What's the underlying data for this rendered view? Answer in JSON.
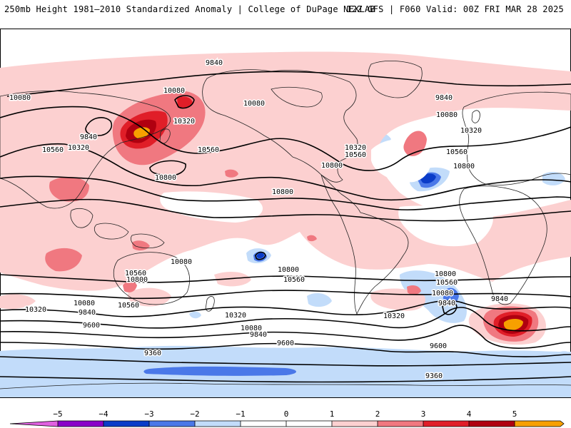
{
  "header": {
    "left": "250mb Height 1981–2010 Standardized Anomaly | College of DuPage NEXLAB",
    "right": "12Z GFS | F060 Valid: 00Z FRI MAR 28 2025"
  },
  "colors": {
    "neg5": "#e060e0",
    "neg4": "#8a00c8",
    "neg3": "#0a3cc8",
    "neg2": "#4a78e8",
    "neg1": "#c2dcfa",
    "pos1": "#fcd0d0",
    "pos2": "#f07880",
    "pos3": "#e01e28",
    "pos4": "#b00010",
    "pos5": "#f7a000"
  },
  "contours": [
    {
      "label": "9840"
    },
    {
      "label": "10080"
    },
    {
      "label": "10080"
    },
    {
      "label": "10320"
    },
    {
      "label": "10560"
    },
    {
      "label": "9840"
    },
    {
      "label": "10320"
    },
    {
      "label": "10800"
    },
    {
      "label": "10560"
    },
    {
      "label": "10080"
    },
    {
      "label": "10320"
    },
    {
      "label": "10560"
    },
    {
      "label": "10800"
    },
    {
      "label": "9840"
    },
    {
      "label": "10080"
    },
    {
      "label": "10320"
    },
    {
      "label": "10560"
    },
    {
      "label": "10800"
    },
    {
      "label": "10800"
    },
    {
      "label": "10800"
    },
    {
      "label": "10560"
    },
    {
      "label": "10560"
    },
    {
      "label": "10320"
    },
    {
      "label": "10080"
    },
    {
      "label": "9840"
    },
    {
      "label": "9600"
    },
    {
      "label": "10080"
    },
    {
      "label": "9840"
    },
    {
      "label": "10800"
    },
    {
      "label": "10560"
    },
    {
      "label": "10320"
    },
    {
      "label": "10080"
    },
    {
      "label": "9840"
    },
    {
      "label": "9600"
    },
    {
      "label": "9600"
    },
    {
      "label": "10800"
    },
    {
      "label": "10560"
    },
    {
      "label": "10080"
    },
    {
      "label": "9840"
    },
    {
      "label": "10320"
    },
    {
      "label": "9360"
    },
    {
      "label": "9360"
    }
  ],
  "legend": {
    "ticks": [
      "−5",
      "−4",
      "−3",
      "−2",
      "−1",
      "0",
      "1",
      "2",
      "3",
      "4",
      "5"
    ]
  }
}
